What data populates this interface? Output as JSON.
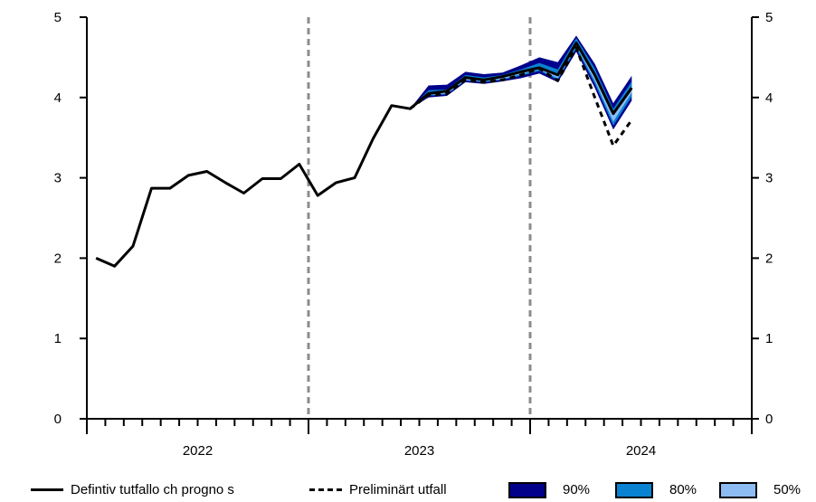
{
  "chart_data": {
    "type": "line",
    "title": "",
    "xlabel": "",
    "ylabel": "",
    "ylim": [
      0,
      5
    ],
    "yticks": [
      "0",
      "1",
      "2",
      "3",
      "4",
      "5"
    ],
    "year_labels": [
      "2022",
      "2023",
      "2024"
    ],
    "x_start": "2022-01",
    "grid": false,
    "colors": {
      "line": "#000000",
      "divider": "#8c8c8c",
      "band90": "#00008b",
      "band80": "#0a82d2",
      "band50": "#8cbcf2"
    },
    "series": [
      {
        "name": "Defintiv tutfallo ch progno s",
        "style": "solid",
        "x": [
          "2022-01",
          "2022-02",
          "2022-03",
          "2022-04",
          "2022-05",
          "2022-06",
          "2022-07",
          "2022-08",
          "2022-09",
          "2022-10",
          "2022-11",
          "2022-12",
          "2023-01",
          "2023-02",
          "2023-03",
          "2023-04",
          "2023-05",
          "2023-06",
          "2023-07",
          "2023-08",
          "2023-09",
          "2023-10",
          "2023-11",
          "2023-12",
          "2024-01",
          "2024-02",
          "2024-03",
          "2024-04",
          "2024-05",
          "2024-06"
        ],
        "values": [
          2.0,
          1.9,
          2.15,
          2.87,
          2.87,
          3.03,
          3.08,
          2.94,
          2.81,
          2.99,
          2.99,
          3.17,
          2.78,
          2.94,
          3.0,
          3.49,
          3.9,
          3.86,
          4.05,
          4.08,
          4.25,
          4.22,
          4.26,
          4.32,
          4.37,
          4.28,
          4.68,
          4.28,
          3.8,
          4.12
        ]
      },
      {
        "name": "Preliminärt utfall",
        "style": "dashed",
        "x": [
          "2023-06",
          "2023-07",
          "2023-08",
          "2023-09",
          "2023-10",
          "2023-11",
          "2023-12",
          "2024-01",
          "2024-02",
          "2024-03",
          "2024-04",
          "2024-05",
          "2024-06"
        ],
        "values": [
          3.86,
          4.03,
          4.05,
          4.22,
          4.19,
          4.22,
          4.28,
          4.36,
          4.21,
          4.62,
          4.0,
          3.4,
          3.72
        ]
      }
    ],
    "bands": [
      {
        "name": "90%",
        "x": [
          "2023-06",
          "2023-07",
          "2023-08",
          "2023-09",
          "2023-10",
          "2023-11",
          "2023-12",
          "2024-01",
          "2024-02",
          "2024-03",
          "2024-04",
          "2024-05",
          "2024-06"
        ],
        "lower": [
          3.86,
          4.0,
          4.02,
          4.19,
          4.17,
          4.2,
          4.24,
          4.3,
          4.19,
          4.57,
          4.12,
          3.6,
          3.96
        ],
        "upper": [
          3.86,
          4.15,
          4.16,
          4.32,
          4.29,
          4.31,
          4.4,
          4.5,
          4.44,
          4.77,
          4.42,
          3.93,
          4.27
        ]
      },
      {
        "name": "80%",
        "x": [
          "2023-06",
          "2023-07",
          "2023-08",
          "2023-09",
          "2023-10",
          "2023-11",
          "2023-12",
          "2024-01",
          "2024-02",
          "2024-03",
          "2024-04",
          "2024-05",
          "2024-06"
        ],
        "lower": [
          3.86,
          4.02,
          4.04,
          4.21,
          4.19,
          4.22,
          4.27,
          4.33,
          4.22,
          4.61,
          4.17,
          3.65,
          4.01
        ],
        "upper": [
          3.86,
          4.09,
          4.1,
          4.28,
          4.25,
          4.28,
          4.35,
          4.43,
          4.35,
          4.74,
          4.36,
          3.86,
          4.2
        ]
      },
      {
        "name": "50%",
        "x": [
          "2023-06",
          "2023-07",
          "2023-08",
          "2023-09",
          "2023-10",
          "2023-11",
          "2023-12",
          "2024-01",
          "2024-02",
          "2024-03",
          "2024-04",
          "2024-05",
          "2024-06"
        ],
        "lower": [
          3.86,
          4.03,
          4.05,
          4.22,
          4.2,
          4.23,
          4.29,
          4.35,
          4.24,
          4.64,
          4.21,
          3.7,
          4.06
        ],
        "upper": [
          3.86,
          4.06,
          4.08,
          4.25,
          4.22,
          4.25,
          4.31,
          4.39,
          4.3,
          4.7,
          4.29,
          3.78,
          4.13
        ]
      }
    ],
    "legend": {
      "position": "bottom",
      "items": [
        "Defintiv tutfallo ch progno s",
        "Preliminärt utfall",
        "90%",
        "80%",
        "50%"
      ]
    }
  }
}
